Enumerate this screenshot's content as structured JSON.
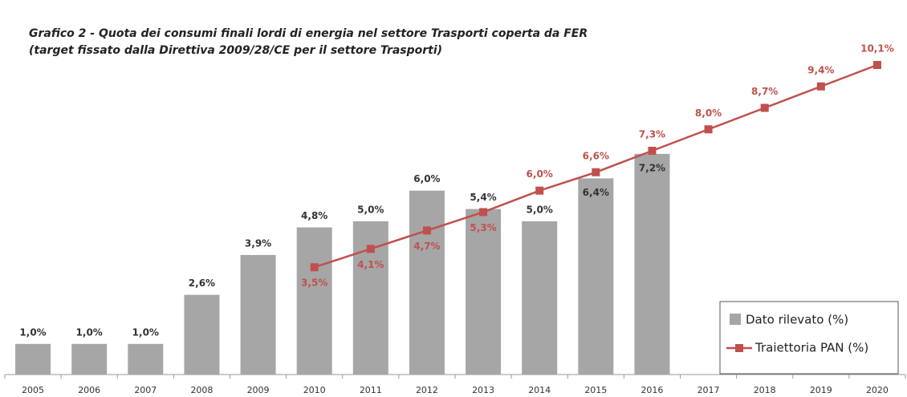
{
  "chart_data": {
    "type": "bar-line",
    "title": "Grafico 2 -  Quota dei consumi finali lordi di energia nel settore Trasporti coperta da FER",
    "subtitle": "(target fissato dalla Direttiva 2009/28/CE per il settore Trasporti)",
    "categories": [
      "2005",
      "2006",
      "2007",
      "2008",
      "2009",
      "2010",
      "2011",
      "2012",
      "2013",
      "2014",
      "2015",
      "2016",
      "2017",
      "2018",
      "2019",
      "2020"
    ],
    "series": [
      {
        "name": "Dato rilevato (%)",
        "type": "bar",
        "color": "#a6a6a6",
        "values": [
          1.0,
          1.0,
          1.0,
          2.6,
          3.9,
          4.8,
          5.0,
          6.0,
          5.4,
          5.0,
          6.4,
          7.2,
          null,
          null,
          null,
          null
        ],
        "value_labels": [
          "1,0%",
          "1,0%",
          "1,0%",
          "2,6%",
          "3,9%",
          "4,8%",
          "5,0%",
          "6,0%",
          "5,4%",
          "5,0%",
          "6,4%",
          "7,2%",
          null,
          null,
          null,
          null
        ]
      },
      {
        "name": "Traiettoria PAN (%)",
        "type": "line",
        "color": "#c0504d",
        "values": [
          null,
          null,
          null,
          null,
          null,
          3.5,
          4.1,
          4.7,
          5.3,
          6.0,
          6.6,
          7.3,
          8.0,
          8.7,
          9.4,
          10.1
        ],
        "value_labels": [
          null,
          null,
          null,
          null,
          null,
          "3,5%",
          "4,1%",
          "4,7%",
          "5,3%",
          "6,0%",
          "6,6%",
          "7,3%",
          "8,0%",
          "8,7%",
          "9,4%",
          "10,1%"
        ]
      }
    ],
    "legend": "lower right"
  }
}
